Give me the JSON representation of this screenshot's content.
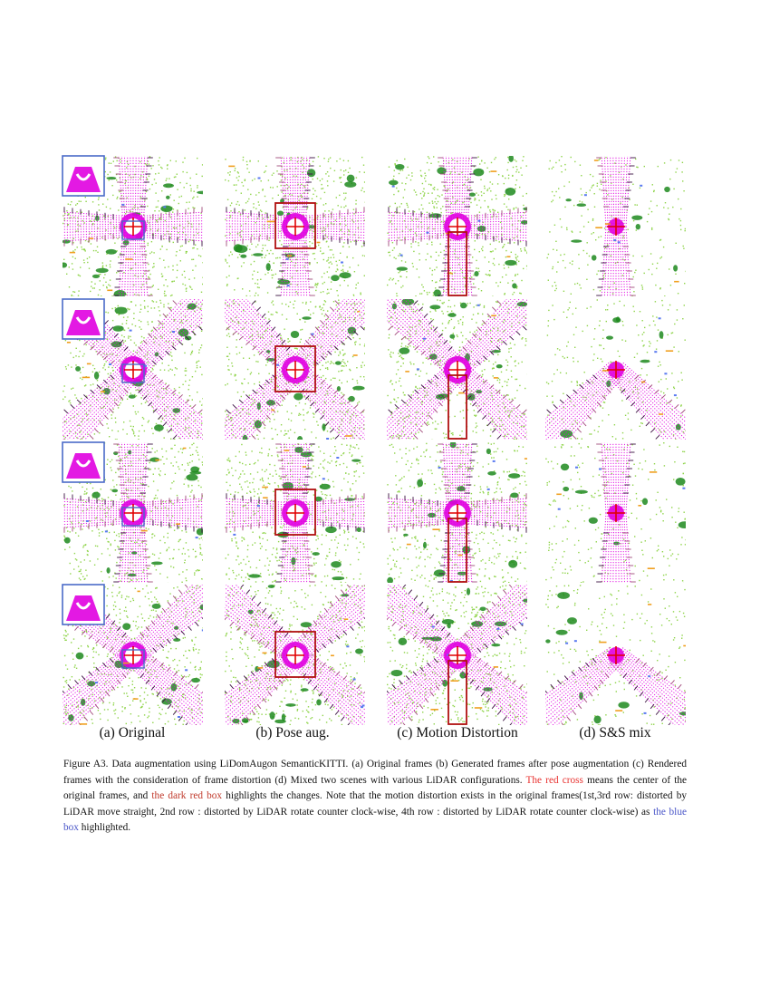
{
  "figure": {
    "columns": [
      {
        "label": "(a) Original"
      },
      {
        "label": "(b) Pose aug."
      },
      {
        "label": "(c) Motion Distortion"
      },
      {
        "label": "(d) S&S mix"
      }
    ],
    "rows": 4
  },
  "caption": {
    "p1": "Figure A3.  Data augmentation using LiDomAugon SemanticKITTI. (a) Original frames (b) Generated frames after pose augmentation (c) Rendered frames with the consideration of frame distortion (d) Mixed two scenes with various LiDAR configurations. ",
    "red_cross": "The red cross",
    "p2": " means the center of the original frames, and ",
    "dark_red_box": "the dark red box",
    "p3": " highlights the changes. Note that the motion distortion exists in the original frames(1st,3rd row:  distorted by LiDAR move straight, 2nd row :  distorted by LiDAR rotate counter clock-wise, 4th row :  distorted by LiDAR rotate counter clock-wise) as ",
    "blue_box": "the blue box",
    "p4": " highlighted."
  },
  "colors": {
    "road": "#e000e0",
    "vegetation": "#8fd44a",
    "vegetation_dark": "#1f8a1f",
    "building": "#a04a7a",
    "dark_points": "#3a1040",
    "orange": "#f0a020",
    "blue_points": "#5a7af0",
    "red_cross": "#e00000",
    "dark_red_box": "#b01010",
    "blue_box": "#4a6ac8"
  }
}
